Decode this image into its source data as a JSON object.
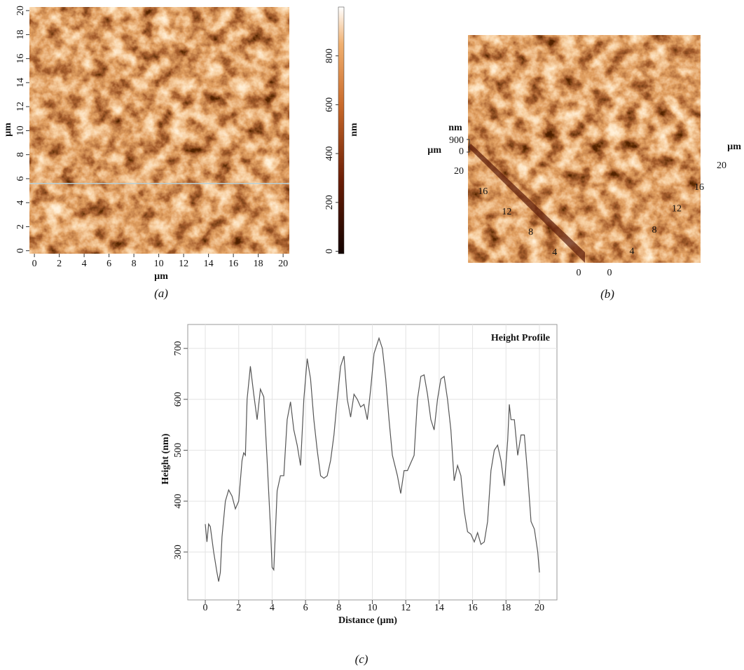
{
  "chart_data": [
    {
      "type": "heatmap",
      "caption": "(a)",
      "xlabel": "µm",
      "ylabel": "µm",
      "xlim": [
        -0.4,
        20.5
      ],
      "ylim": [
        -0.25,
        20.3
      ],
      "xticks": [
        0,
        2,
        4,
        6,
        8,
        10,
        12,
        14,
        16,
        18,
        20
      ],
      "yticks": [
        0,
        2,
        4,
        6,
        8,
        10,
        12,
        14,
        16,
        18,
        20
      ],
      "profile_y": 5.6,
      "colorbar": {
        "label": "nm",
        "lim": [
          -10,
          1000
        ],
        "ticks": [
          0,
          200,
          400,
          600,
          800
        ]
      }
    },
    {
      "type": "surface3d",
      "caption": "(b)",
      "zlabel": "nm",
      "ylabel": "µm",
      "xlabel": "µm",
      "zticks": [
        0,
        900
      ],
      "xticks": [
        0,
        4,
        8,
        12,
        16,
        20
      ],
      "yticks": [
        0,
        4,
        8,
        12,
        16,
        20
      ]
    },
    {
      "type": "line",
      "caption": "(c)",
      "title": "Height Profile",
      "xlabel": "Distance (µm)",
      "ylabel": "Height (nm)",
      "xlim": [
        -1.05,
        21.05
      ],
      "ylim": [
        206,
        747
      ],
      "grid": true,
      "color": "#555555",
      "xticks": [
        0,
        2,
        4,
        6,
        8,
        10,
        12,
        14,
        16,
        18,
        20
      ],
      "yticks": [
        300,
        400,
        500,
        600,
        700
      ],
      "x": [
        0,
        0.1,
        0.2,
        0.3,
        0.5,
        0.7,
        0.8,
        0.9,
        1.0,
        1.2,
        1.4,
        1.6,
        1.8,
        2.0,
        2.2,
        2.3,
        2.4,
        2.5,
        2.7,
        2.9,
        3.1,
        3.3,
        3.5,
        3.7,
        3.9,
        4.0,
        4.1,
        4.3,
        4.5,
        4.7,
        4.9,
        5.1,
        5.3,
        5.5,
        5.7,
        5.9,
        6.1,
        6.3,
        6.5,
        6.7,
        6.9,
        7.1,
        7.3,
        7.5,
        7.7,
        7.9,
        8.1,
        8.3,
        8.5,
        8.7,
        8.9,
        9.1,
        9.3,
        9.5,
        9.7,
        9.9,
        10.1,
        10.4,
        10.6,
        10.8,
        11.0,
        11.2,
        11.5,
        11.7,
        11.9,
        12.1,
        12.3,
        12.5,
        12.7,
        12.9,
        13.1,
        13.3,
        13.5,
        13.7,
        13.9,
        14.1,
        14.3,
        14.5,
        14.7,
        14.9,
        15.1,
        15.3,
        15.5,
        15.7,
        15.9,
        16.1,
        16.3,
        16.5,
        16.7,
        16.9,
        17.1,
        17.3,
        17.5,
        17.7,
        17.9,
        18.1,
        18.2,
        18.3,
        18.5,
        18.7,
        18.9,
        19.1,
        19.3,
        19.5,
        19.7,
        19.9,
        20.0
      ],
      "values": [
        355,
        320,
        355,
        350,
        300,
        260,
        242,
        260,
        330,
        400,
        422,
        410,
        385,
        400,
        480,
        495,
        490,
        600,
        665,
        610,
        560,
        620,
        605,
        480,
        350,
        270,
        265,
        420,
        450,
        450,
        560,
        595,
        540,
        510,
        470,
        600,
        680,
        640,
        560,
        500,
        450,
        445,
        450,
        480,
        530,
        600,
        665,
        685,
        600,
        565,
        610,
        600,
        585,
        590,
        560,
        620,
        690,
        720,
        700,
        640,
        560,
        490,
        450,
        415,
        460,
        460,
        475,
        490,
        600,
        645,
        648,
        610,
        560,
        540,
        600,
        640,
        645,
        600,
        540,
        440,
        470,
        450,
        380,
        340,
        335,
        320,
        338,
        315,
        320,
        360,
        460,
        500,
        510,
        480,
        430,
        520,
        590,
        560,
        560,
        490,
        530,
        530,
        450,
        360,
        345,
        300,
        260
      ]
    }
  ]
}
